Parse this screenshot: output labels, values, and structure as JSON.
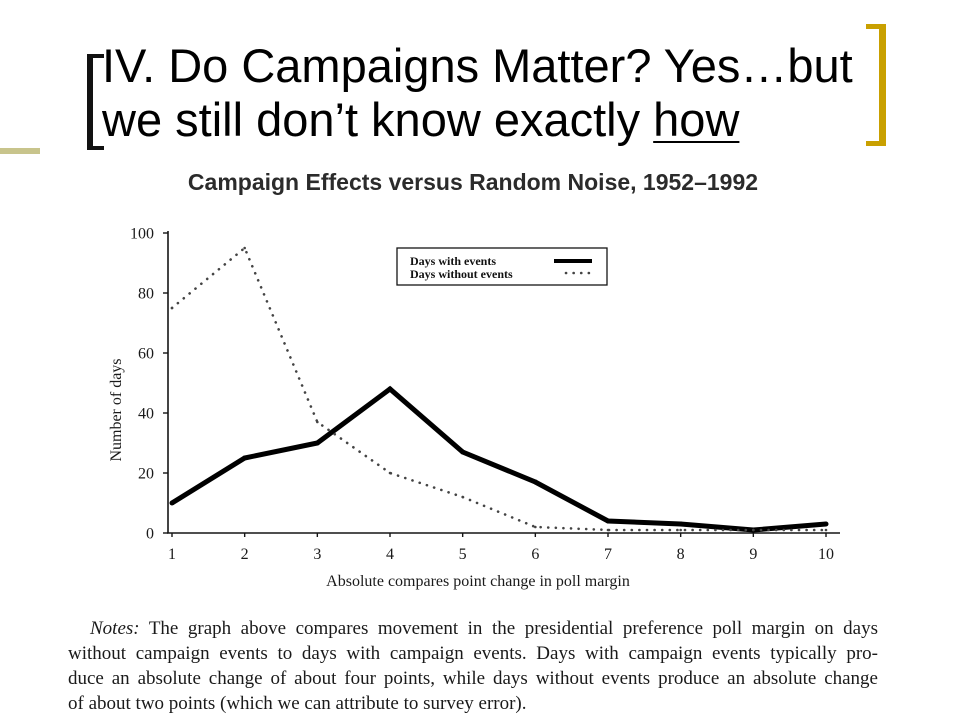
{
  "slide_title": {
    "line1": "IV. Do Campaigns Matter? Yes…but",
    "line2": "we still don’t know exactly ",
    "line2_underlined": "how"
  },
  "colors": {
    "bracket_left": "#111111",
    "bracket_right": "#C9A000",
    "accent_rule": "#C8C48C"
  },
  "chart_data": {
    "type": "line",
    "title": "Campaign Effects versus Random Noise, 1952–1992",
    "xlabel": "Absolute compares point change in poll margin",
    "ylabel": "Number of days",
    "x": [
      1,
      2,
      3,
      4,
      5,
      6,
      7,
      8,
      9,
      10
    ],
    "xticks": [
      "1",
      "2",
      "3",
      "4",
      "5",
      "6",
      "7",
      "8",
      "9",
      "10"
    ],
    "yticks": [
      "0",
      "20",
      "40",
      "60",
      "80",
      "100"
    ],
    "xlim": [
      1,
      10
    ],
    "ylim": [
      0,
      100
    ],
    "grid": false,
    "legend": "top-center",
    "series": [
      {
        "name": "Days with events",
        "style": "solid",
        "color": "#000000",
        "values": [
          10,
          25,
          30,
          48,
          27,
          17,
          4,
          3,
          1,
          3
        ]
      },
      {
        "name": "Days without events",
        "style": "dotted",
        "color": "#444444",
        "values": [
          75,
          95,
          37,
          20,
          12,
          2,
          1,
          1,
          1,
          1
        ]
      }
    ]
  },
  "notes": {
    "label": "Notes:",
    "line1": "The graph above compares movement in the presidential preference poll margin on days",
    "lines": [
      "without campaign events to days with campaign events. Days with campaign events typically pro-",
      "duce an absolute change of about four points, while days without events produce an absolute change",
      "of about two points (which we can attribute to survey error)."
    ]
  }
}
